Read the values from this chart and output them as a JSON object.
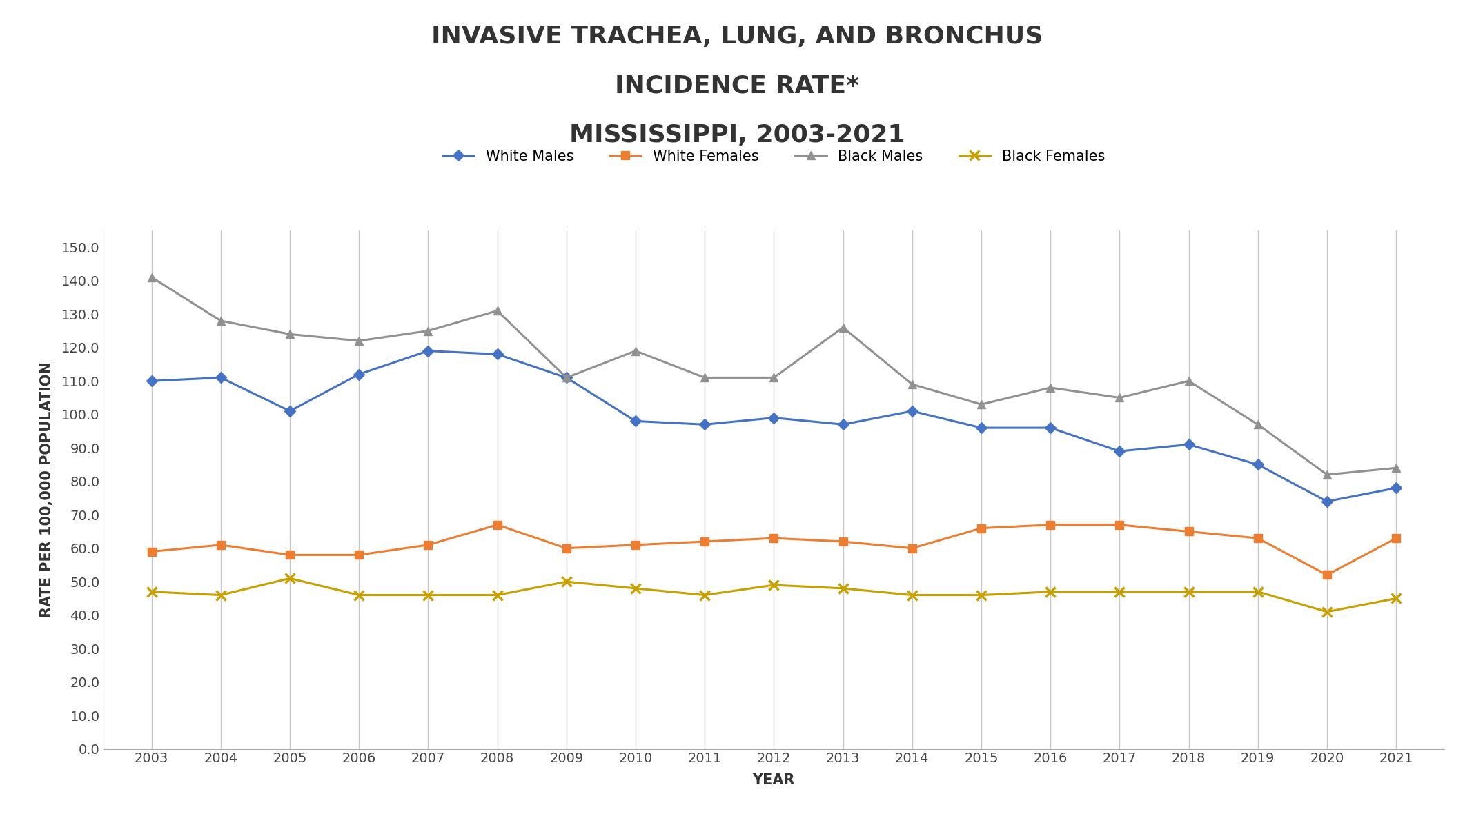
{
  "title_line1": "INVASIVE TRACHEA, LUNG, AND BRONCHUS",
  "title_line2": "INCIDENCE RATE*",
  "title_line3": "MISSISSIPPI, 2003-2021",
  "xlabel": "YEAR",
  "ylabel": "RATE PER 100,000 POPULATION",
  "years": [
    2003,
    2004,
    2005,
    2006,
    2007,
    2008,
    2009,
    2010,
    2011,
    2012,
    2013,
    2014,
    2015,
    2016,
    2017,
    2018,
    2019,
    2020,
    2021
  ],
  "white_males": [
    110.0,
    111.0,
    101.0,
    112.0,
    119.0,
    118.0,
    111.0,
    98.0,
    97.0,
    99.0,
    97.0,
    101.0,
    96.0,
    96.0,
    89.0,
    91.0,
    85.0,
    74.0,
    78.0
  ],
  "white_females": [
    59.0,
    61.0,
    58.0,
    58.0,
    61.0,
    67.0,
    60.0,
    61.0,
    62.0,
    63.0,
    62.0,
    60.0,
    66.0,
    67.0,
    67.0,
    65.0,
    63.0,
    52.0,
    63.0
  ],
  "black_males": [
    141.0,
    128.0,
    124.0,
    122.0,
    125.0,
    131.0,
    111.0,
    119.0,
    111.0,
    111.0,
    126.0,
    109.0,
    103.0,
    108.0,
    105.0,
    110.0,
    97.0,
    82.0,
    84.0
  ],
  "black_females": [
    47.0,
    46.0,
    51.0,
    46.0,
    46.0,
    46.0,
    50.0,
    48.0,
    46.0,
    49.0,
    48.0,
    46.0,
    46.0,
    47.0,
    47.0,
    47.0,
    47.0,
    41.0,
    45.0
  ],
  "white_males_color": "#4472c4",
  "white_females_color": "#ed7d31",
  "black_males_color": "#919191",
  "black_females_color": "#c8a000",
  "ylim": [
    0.0,
    155.0
  ],
  "yticks": [
    0.0,
    10.0,
    20.0,
    30.0,
    40.0,
    50.0,
    60.0,
    70.0,
    80.0,
    90.0,
    100.0,
    110.0,
    120.0,
    130.0,
    140.0,
    150.0
  ],
  "background_color": "#ffffff",
  "grid_color": "#c8c8c8",
  "title_fontsize": 26,
  "axis_label_fontsize": 15,
  "tick_fontsize": 14,
  "legend_fontsize": 15
}
